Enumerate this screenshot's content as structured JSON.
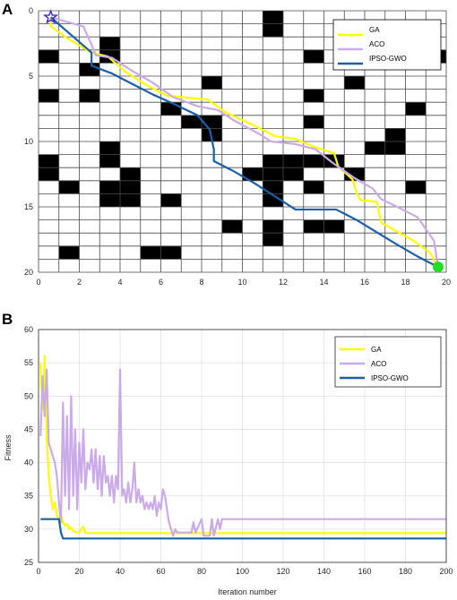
{
  "chart_data": [
    {
      "type": "grid-path",
      "panel": "A",
      "grid_size": 20,
      "xticks": [
        "0",
        "2",
        "4",
        "6",
        "8",
        "10",
        "12",
        "14",
        "16",
        "18",
        "20"
      ],
      "yticks": [
        "0",
        "5",
        "10",
        "15",
        "20"
      ],
      "obstacles": [
        [
          11,
          0
        ],
        [
          11,
          1
        ],
        [
          3,
          2
        ],
        [
          3,
          3
        ],
        [
          0,
          3
        ],
        [
          13,
          3
        ],
        [
          17,
          3
        ],
        [
          19,
          3
        ],
        [
          2,
          4
        ],
        [
          15,
          5
        ],
        [
          8,
          5
        ],
        [
          0,
          6
        ],
        [
          2,
          6
        ],
        [
          13,
          6
        ],
        [
          6,
          7
        ],
        [
          18,
          7
        ],
        [
          7,
          8
        ],
        [
          8,
          8
        ],
        [
          8,
          9
        ],
        [
          13,
          8
        ],
        [
          17,
          9
        ],
        [
          3,
          10
        ],
        [
          16,
          10
        ],
        [
          17,
          10
        ],
        [
          0,
          11
        ],
        [
          3,
          11
        ],
        [
          11,
          11
        ],
        [
          12,
          11
        ],
        [
          13,
          11
        ],
        [
          14,
          11
        ],
        [
          0,
          12
        ],
        [
          4,
          12
        ],
        [
          10,
          12
        ],
        [
          11,
          12
        ],
        [
          12,
          12
        ],
        [
          15,
          12
        ],
        [
          1,
          13
        ],
        [
          3,
          13
        ],
        [
          4,
          13
        ],
        [
          11,
          13
        ],
        [
          13,
          13
        ],
        [
          18,
          13
        ],
        [
          3,
          14
        ],
        [
          4,
          14
        ],
        [
          6,
          14
        ],
        [
          11,
          14
        ],
        [
          9,
          16
        ],
        [
          11,
          16
        ],
        [
          13,
          16
        ],
        [
          14,
          16
        ],
        [
          11,
          17
        ],
        [
          1,
          18
        ],
        [
          5,
          18
        ],
        [
          6,
          18
        ]
      ],
      "start": [
        0.6,
        0.5
      ],
      "goal": [
        19.6,
        19.6
      ],
      "series": [
        {
          "name": "GA",
          "color": "#ffff00",
          "points": [
            [
              0.6,
              0.5
            ],
            [
              0.6,
              1.2
            ],
            [
              1.4,
              2.1
            ],
            [
              2.6,
              3.2
            ],
            [
              3.4,
              3.5
            ],
            [
              4.2,
              4.6
            ],
            [
              5.2,
              5.6
            ],
            [
              6.3,
              6.5
            ],
            [
              8.3,
              6.8
            ],
            [
              9.2,
              7.8
            ],
            [
              10.6,
              8.8
            ],
            [
              11.6,
              9.6
            ],
            [
              12.6,
              9.8
            ],
            [
              13.5,
              10.4
            ],
            [
              14.5,
              10.9
            ],
            [
              14.7,
              11.9
            ],
            [
              15.4,
              12.9
            ],
            [
              15.6,
              13.9
            ],
            [
              15.8,
              14.5
            ],
            [
              16.6,
              14.6
            ],
            [
              16.8,
              16.2
            ],
            [
              17.6,
              16.9
            ],
            [
              18.4,
              17.6
            ],
            [
              19.2,
              18.5
            ],
            [
              19.6,
              19.6
            ]
          ]
        },
        {
          "name": "ACO",
          "color": "#cbaae8",
          "points": [
            [
              0.6,
              0.5
            ],
            [
              2.2,
              1.2
            ],
            [
              2.6,
              2.6
            ],
            [
              2.8,
              3.4
            ],
            [
              3.6,
              3.6
            ],
            [
              4.6,
              4.6
            ],
            [
              5.6,
              5.5
            ],
            [
              6.6,
              6.6
            ],
            [
              7.8,
              7.3
            ],
            [
              8.8,
              7.6
            ],
            [
              9.6,
              8.4
            ],
            [
              10.8,
              9.4
            ],
            [
              11.4,
              10.0
            ],
            [
              12.6,
              10.2
            ],
            [
              13.6,
              10.6
            ],
            [
              14.4,
              11.6
            ],
            [
              15.5,
              12.8
            ],
            [
              16.4,
              13.6
            ],
            [
              16.8,
              14.4
            ],
            [
              17.6,
              15.0
            ],
            [
              18.6,
              15.8
            ],
            [
              19.4,
              17.6
            ],
            [
              19.6,
              19.6
            ]
          ]
        },
        {
          "name": "IPSO-GWO",
          "color": "#1a5fa8",
          "points": [
            [
              0.6,
              0.5
            ],
            [
              2.6,
              3.2
            ],
            [
              2.6,
              4.2
            ],
            [
              3.6,
              4.8
            ],
            [
              4.6,
              5.6
            ],
            [
              5.6,
              6.4
            ],
            [
              6.6,
              7.1
            ],
            [
              7.8,
              8.0
            ],
            [
              8.4,
              9.1
            ],
            [
              8.6,
              10.6
            ],
            [
              8.6,
              11.5
            ],
            [
              9.6,
              12.3
            ],
            [
              10.6,
              13.2
            ],
            [
              11.6,
              14.2
            ],
            [
              12.6,
              15.2
            ],
            [
              14.6,
              15.2
            ],
            [
              15.6,
              16.0
            ],
            [
              17.6,
              17.9
            ],
            [
              18.6,
              18.8
            ],
            [
              19.6,
              19.6
            ]
          ]
        }
      ],
      "legend": [
        "GA",
        "ACO",
        "IPSO-GWO"
      ],
      "legend_position": "top-right"
    },
    {
      "type": "line",
      "panel": "B",
      "xlabel": "Iteration number",
      "ylabel": "Fitness",
      "xlim": [
        0,
        200
      ],
      "ylim": [
        25,
        60
      ],
      "xticks": [
        "0",
        "20",
        "40",
        "60",
        "80",
        "100",
        "120",
        "140",
        "160",
        "180",
        "200"
      ],
      "yticks": [
        "25",
        "30",
        "35",
        "40",
        "45",
        "50",
        "55",
        "60"
      ],
      "grid": true,
      "legend_position": "top-right",
      "series": [
        {
          "name": "GA",
          "color": "#ffff00",
          "points": [
            [
              1,
              55
            ],
            [
              2,
              48
            ],
            [
              3,
              56
            ],
            [
              4,
              44
            ],
            [
              5,
              38
            ],
            [
              6,
              35
            ],
            [
              7,
              33
            ],
            [
              8,
              34
            ],
            [
              9,
              32
            ],
            [
              10,
              31.5
            ],
            [
              11,
              32
            ],
            [
              12,
              31
            ],
            [
              13,
              30.5
            ],
            [
              14,
              30.8
            ],
            [
              15,
              30
            ],
            [
              16,
              30.2
            ],
            [
              17,
              29.7
            ],
            [
              18,
              29.6
            ],
            [
              19,
              29.5
            ],
            [
              20,
              29.5
            ],
            [
              21,
              30
            ],
            [
              22,
              30.4
            ],
            [
              23,
              29.4
            ],
            [
              200,
              29.4
            ]
          ]
        },
        {
          "name": "ACO",
          "color": "#cbaae8",
          "points": [
            [
              1,
              44
            ],
            [
              2,
              53
            ],
            [
              3,
              47
            ],
            [
              4,
              54
            ],
            [
              5,
              43
            ],
            [
              6,
              42
            ],
            [
              7,
              41
            ],
            [
              8,
              40
            ],
            [
              9,
              38
            ],
            [
              10,
              34
            ],
            [
              11,
              31
            ],
            [
              12,
              49
            ],
            [
              13,
              35
            ],
            [
              14,
              47
            ],
            [
              15,
              33
            ],
            [
              16,
              50
            ],
            [
              17,
              35
            ],
            [
              18,
              45
            ],
            [
              19,
              33
            ],
            [
              20,
              43
            ],
            [
              21,
              37
            ],
            [
              22,
              45
            ],
            [
              23,
              36
            ],
            [
              24,
              40
            ],
            [
              25,
              39
            ],
            [
              26,
              42
            ],
            [
              27,
              37
            ],
            [
              28,
              42
            ],
            [
              29,
              36
            ],
            [
              30,
              41
            ],
            [
              31,
              35
            ],
            [
              32,
              41
            ],
            [
              33,
              37
            ],
            [
              34,
              38
            ],
            [
              35,
              35
            ],
            [
              36,
              38
            ],
            [
              37,
              34
            ],
            [
              38,
              38
            ],
            [
              39,
              36
            ],
            [
              40,
              54
            ],
            [
              41,
              35
            ],
            [
              42,
              36
            ],
            [
              43,
              34
            ],
            [
              44,
              37
            ],
            [
              45,
              34
            ],
            [
              46,
              36
            ],
            [
              47,
              40
            ],
            [
              48,
              34
            ],
            [
              49,
              36
            ],
            [
              50,
              34
            ],
            [
              51,
              35
            ],
            [
              52,
              33
            ],
            [
              53,
              34
            ],
            [
              54,
              33
            ],
            [
              55,
              34
            ],
            [
              56,
              33
            ],
            [
              57,
              35
            ],
            [
              58,
              32
            ],
            [
              59,
              34
            ],
            [
              60,
              33
            ],
            [
              61,
              36
            ],
            [
              62,
              35
            ],
            [
              63,
              33
            ],
            [
              64,
              31
            ],
            [
              65,
              30
            ],
            [
              66,
              29
            ],
            [
              67,
              30
            ],
            [
              68,
              29.5
            ],
            [
              70,
              29.5
            ],
            [
              75,
              29.5
            ],
            [
              76,
              31
            ],
            [
              77,
              29.5
            ],
            [
              80,
              31.5
            ],
            [
              81,
              29
            ],
            [
              84,
              29
            ],
            [
              85,
              31.5
            ],
            [
              86,
              29
            ],
            [
              88,
              31.5
            ],
            [
              89,
              30
            ],
            [
              90,
              31.5
            ],
            [
              200,
              31.5
            ]
          ]
        },
        {
          "name": "IPSO-GWO",
          "color": "#1a5fa8",
          "points": [
            [
              1,
              31.5
            ],
            [
              10,
              31.5
            ],
            [
              11,
              29.5
            ],
            [
              12,
              28.6
            ],
            [
              200,
              28.6
            ]
          ]
        }
      ]
    }
  ]
}
